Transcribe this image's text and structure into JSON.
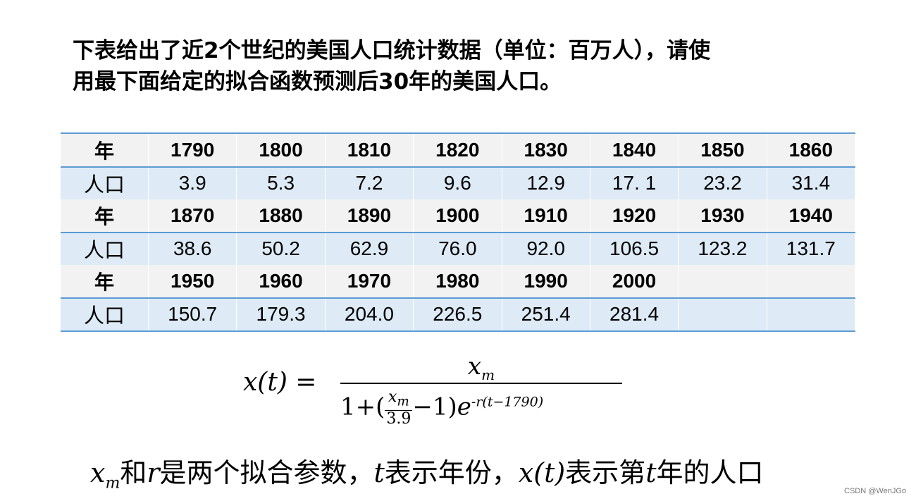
{
  "intro": {
    "line1": "下表给出了近2个世纪的美国人口统计数据（单位：百万人），请使",
    "line2": "用最下面给定的拟合函数预测后30年的美国人口。"
  },
  "table": {
    "year_label": "年",
    "pop_label": "人口",
    "rows": [
      {
        "years": [
          "1790",
          "1800",
          "1810",
          "1820",
          "1830",
          "1840",
          "1850",
          "1860"
        ],
        "pops": [
          "3.9",
          "5.3",
          "7.2",
          "9.6",
          "12.9",
          "17. 1",
          "23.2",
          "31.4"
        ]
      },
      {
        "years": [
          "1870",
          "1880",
          "1890",
          "1900",
          "1910",
          "1920",
          "1930",
          "1940"
        ],
        "pops": [
          "38.6",
          "50.2",
          "62.9",
          "76.0",
          "92.0",
          "106.5",
          "123.2",
          "131.7"
        ]
      },
      {
        "years": [
          "1950",
          "1960",
          "1970",
          "1980",
          "1990",
          "2000",
          "",
          ""
        ],
        "pops": [
          "150.7",
          "179.3",
          "204.0",
          "226.5",
          "251.4",
          "281.4",
          "",
          ""
        ]
      }
    ]
  },
  "formula": {
    "lhs": "x(t) =",
    "num_var": "x",
    "num_sub": "m",
    "den_one": "1+(",
    "frac_top_var": "x",
    "frac_top_sub": "m",
    "frac_bottom": "3.9",
    "den_minus": "−1)",
    "den_e": "e",
    "den_exp": "-r(t−1790)"
  },
  "explain": {
    "xm_var": "x",
    "xm_sub": "m",
    "t1": "和",
    "r_var": "r",
    "t2": "是两个拟合参数，",
    "t_var": "t",
    "t3": "表示年份，",
    "xt_var": "x(t)",
    "t4": "表示第",
    "t_var2": "t",
    "t5": "年的人口"
  },
  "watermark": "CSDN @WenJGo"
}
